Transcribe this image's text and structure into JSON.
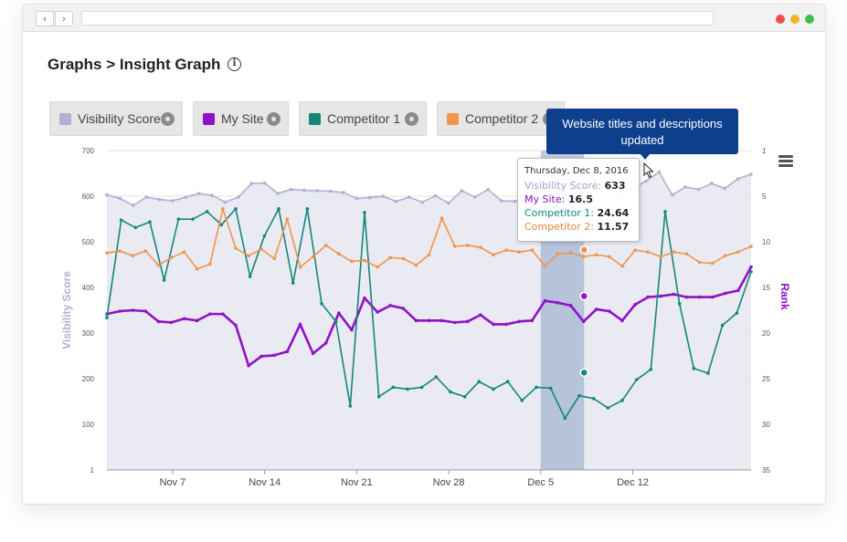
{
  "page": {
    "breadcrumb": "Graphs > Insight Graph",
    "info_glyph": "i"
  },
  "browser": {
    "back_glyph": "‹",
    "forward_glyph": "›"
  },
  "legend": [
    {
      "label": "Visibility Score",
      "color": "#b3aed2"
    },
    {
      "label": "My Site",
      "color": "#9012c6"
    },
    {
      "label": "Competitor 1",
      "color": "#13877a"
    },
    {
      "label": "Competitor 2",
      "color": "#f0954b"
    }
  ],
  "annotation": {
    "text": "Website titles and descriptions updated"
  },
  "tooltip": {
    "date": "Thursday, Dec 8, 2016",
    "rows": [
      {
        "label": "Visibility Score",
        "value": "633",
        "color": "#a59fc9"
      },
      {
        "label": "My Site",
        "value": "16.5",
        "color": "#9012c6"
      },
      {
        "label": "Competitor 1",
        "value": "24.64",
        "color": "#13877a"
      },
      {
        "label": "Competitor 2",
        "value": "11.57",
        "color": "#e8883a"
      }
    ]
  },
  "chart_data": {
    "type": "line",
    "xlabel": "",
    "ylabel": "Visibility Score",
    "y2label": "Rank",
    "x_ticks": [
      "Nov 7",
      "Nov 14",
      "Nov 21",
      "Nov 28",
      "Dec 5",
      "Dec 12"
    ],
    "left_ticks": [
      "700",
      "600",
      "500",
      "400",
      "300",
      "200",
      "100",
      "1"
    ],
    "right_ticks": [
      "1",
      "5",
      "10",
      "15",
      "20",
      "25",
      "30",
      "35"
    ],
    "ylim_left": [
      1,
      700
    ],
    "ylim_right": [
      1,
      35
    ],
    "highlight_band": [
      "Dec 5",
      "Dec 8"
    ],
    "series": [
      {
        "name": "Visibility Score",
        "axis": "left",
        "color": "#b3aed2",
        "values": [
          603,
          595,
          580,
          598,
          593,
          590,
          598,
          606,
          602,
          587,
          598,
          628,
          629,
          606,
          615,
          613,
          612,
          611,
          608,
          595,
          597,
          600,
          589,
          598,
          587,
          601,
          585,
          612,
          598,
          615,
          590,
          589,
          598,
          598,
          608,
          590,
          620,
          621,
          618,
          608,
          618,
          633,
          653,
          603,
          620,
          615,
          628,
          617,
          638,
          648
        ]
      },
      {
        "name": "My Site",
        "axis": "right",
        "color": "#9012c6",
        "values": [
          18.4,
          18.1,
          18.0,
          18.1,
          19.2,
          19.3,
          18.9,
          19.1,
          18.4,
          18.4,
          19.6,
          23.9,
          22.9,
          22.8,
          22.4,
          19.5,
          22.6,
          21.5,
          18.3,
          20.1,
          16.7,
          18.2,
          17.5,
          17.8,
          19.1,
          19.1,
          19.1,
          19.3,
          19.2,
          18.5,
          19.5,
          19.5,
          19.2,
          19.1,
          17.0,
          17.2,
          17.5,
          19.2,
          17.9,
          18.1,
          19.1,
          17.4,
          16.6,
          16.5,
          16.3,
          16.6,
          16.6,
          16.6,
          16.2,
          15.9,
          13.4
        ]
      },
      {
        "name": "Competitor 1",
        "axis": "right",
        "color": "#13877a",
        "values": [
          18.8,
          8.4,
          9.2,
          8.6,
          14.8,
          8.3,
          8.3,
          7.5,
          8.9,
          7.2,
          14.4,
          10.1,
          7.2,
          15.1,
          7.2,
          17.3,
          19.2,
          28.2,
          7.6,
          27.2,
          26.2,
          26.4,
          26.2,
          25.1,
          26.7,
          27.2,
          25.6,
          26.4,
          25.6,
          27.6,
          26.2,
          26.3,
          29.5,
          27.1,
          27.4,
          28.4,
          27.6,
          25.4,
          24.3,
          7.5,
          17.3,
          24.2,
          24.7,
          19.6,
          18.3,
          13.9
        ]
      },
      {
        "name": "Competitor 2",
        "axis": "right",
        "color": "#f0954b",
        "values": [
          11.9,
          11.7,
          12.2,
          11.7,
          13.2,
          12.4,
          11.8,
          13.6,
          13.1,
          7.2,
          11.4,
          12.2,
          11.5,
          12.5,
          8.3,
          13.4,
          12.3,
          11.1,
          12.0,
          12.8,
          12.7,
          13.4,
          12.4,
          12.5,
          13.2,
          12.1,
          8.2,
          11.2,
          11.1,
          11.3,
          12.1,
          11.6,
          11.8,
          11.6,
          13.3,
          12.0,
          11.9,
          12.3,
          12.1,
          12.3,
          13.3,
          11.6,
          11.8,
          12.3,
          11.8,
          12.0,
          12.9,
          13.0,
          12.2,
          11.8,
          11.2
        ]
      }
    ]
  }
}
